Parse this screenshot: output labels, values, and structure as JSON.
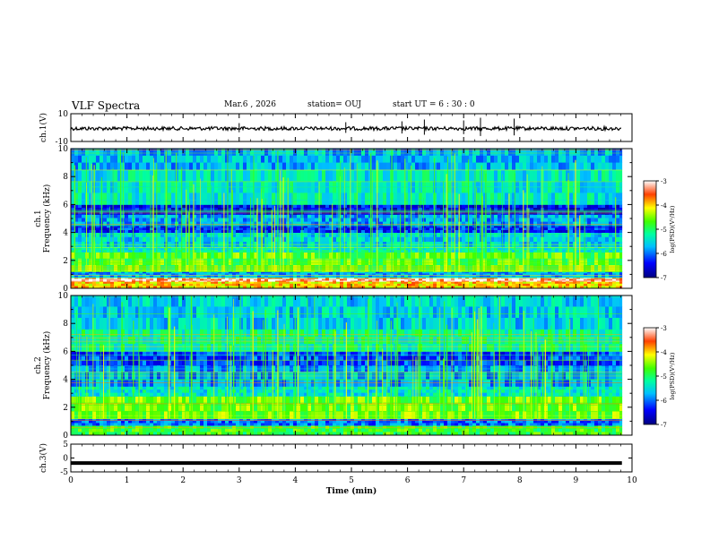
{
  "header": {
    "title": "VLF Spectra",
    "date": "Mar.6  , 2026",
    "station": "station= OUJ",
    "start": "start  UT  =   6  : 30 : 0"
  },
  "chart_data": [
    {
      "type": "line",
      "name": "ch1-waveform",
      "ylabel": "ch.1(V)",
      "ylim": [
        -10,
        10
      ],
      "yticks": [
        "10",
        "-10"
      ],
      "baseline": 0
    },
    {
      "type": "heatmap",
      "name": "ch1-spectrogram",
      "ylabel": "ch.1\nFrequency (kHz)",
      "ylabel_lines": [
        "ch.1",
        "Frequency  (kHz)"
      ],
      "ylim": [
        0,
        10
      ],
      "yticks": [
        "0",
        "2",
        "4",
        "6",
        "8",
        "10"
      ],
      "xlim": [
        0,
        10
      ],
      "data_extent_min": 9.82,
      "colorbar": {
        "label": "log(PSD)(V²/Hz)",
        "range": [
          -7,
          -3
        ],
        "ticks": [
          "-3",
          "-4",
          "-5",
          "-6",
          "-7"
        ]
      },
      "bands": [
        {
          "from": 0.0,
          "to": 0.5,
          "level": 0.75
        },
        {
          "from": 0.5,
          "to": 0.8,
          "level": 0.95
        },
        {
          "from": 0.8,
          "to": 1.2,
          "level": 0.3
        },
        {
          "from": 1.2,
          "to": 2.6,
          "level": 0.58
        },
        {
          "from": 2.6,
          "to": 3.0,
          "level": 0.42
        },
        {
          "from": 3.0,
          "to": 4.0,
          "level": 0.36
        },
        {
          "from": 4.0,
          "to": 4.5,
          "level": 0.18
        },
        {
          "from": 4.5,
          "to": 5.3,
          "level": 0.3
        },
        {
          "from": 5.3,
          "to": 6.0,
          "level": 0.14
        },
        {
          "from": 6.0,
          "to": 8.5,
          "level": 0.4
        },
        {
          "from": 8.5,
          "to": 10.0,
          "level": 0.32
        }
      ]
    },
    {
      "type": "heatmap",
      "name": "ch2-spectrogram",
      "ylabel_lines": [
        "ch.2",
        "Frequency  (kHz)"
      ],
      "ylim": [
        0,
        10
      ],
      "yticks": [
        "0",
        "2",
        "4",
        "6",
        "8",
        "10"
      ],
      "xlim": [
        0,
        10
      ],
      "data_extent_min": 9.82,
      "colorbar": {
        "label": "log(PSD)(V²/Hz)",
        "range": [
          -7,
          -3
        ],
        "ticks": [
          "-3",
          "-4",
          "-5",
          "-6",
          "-7"
        ]
      },
      "bands": [
        {
          "from": 0.0,
          "to": 0.7,
          "level": 0.55
        },
        {
          "from": 0.7,
          "to": 1.2,
          "level": 0.25
        },
        {
          "from": 1.2,
          "to": 2.8,
          "level": 0.6
        },
        {
          "from": 2.8,
          "to": 3.5,
          "level": 0.4
        },
        {
          "from": 3.5,
          "to": 5.0,
          "level": 0.3
        },
        {
          "from": 5.0,
          "to": 6.0,
          "level": 0.2
        },
        {
          "from": 6.0,
          "to": 7.6,
          "level": 0.45
        },
        {
          "from": 7.6,
          "to": 10.0,
          "level": 0.36
        }
      ]
    },
    {
      "type": "line",
      "name": "ch3-waveform",
      "ylabel": "ch.3(V)",
      "ylim": [
        -5,
        5
      ],
      "yticks": [
        "5",
        "0",
        "-5"
      ],
      "constant_value": -1.8
    }
  ],
  "xaxis": {
    "label": "Time  (min)",
    "range": [
      0,
      10
    ],
    "ticks": [
      "0",
      "1",
      "2",
      "3",
      "4",
      "5",
      "6",
      "7",
      "8",
      "9",
      "10"
    ]
  }
}
